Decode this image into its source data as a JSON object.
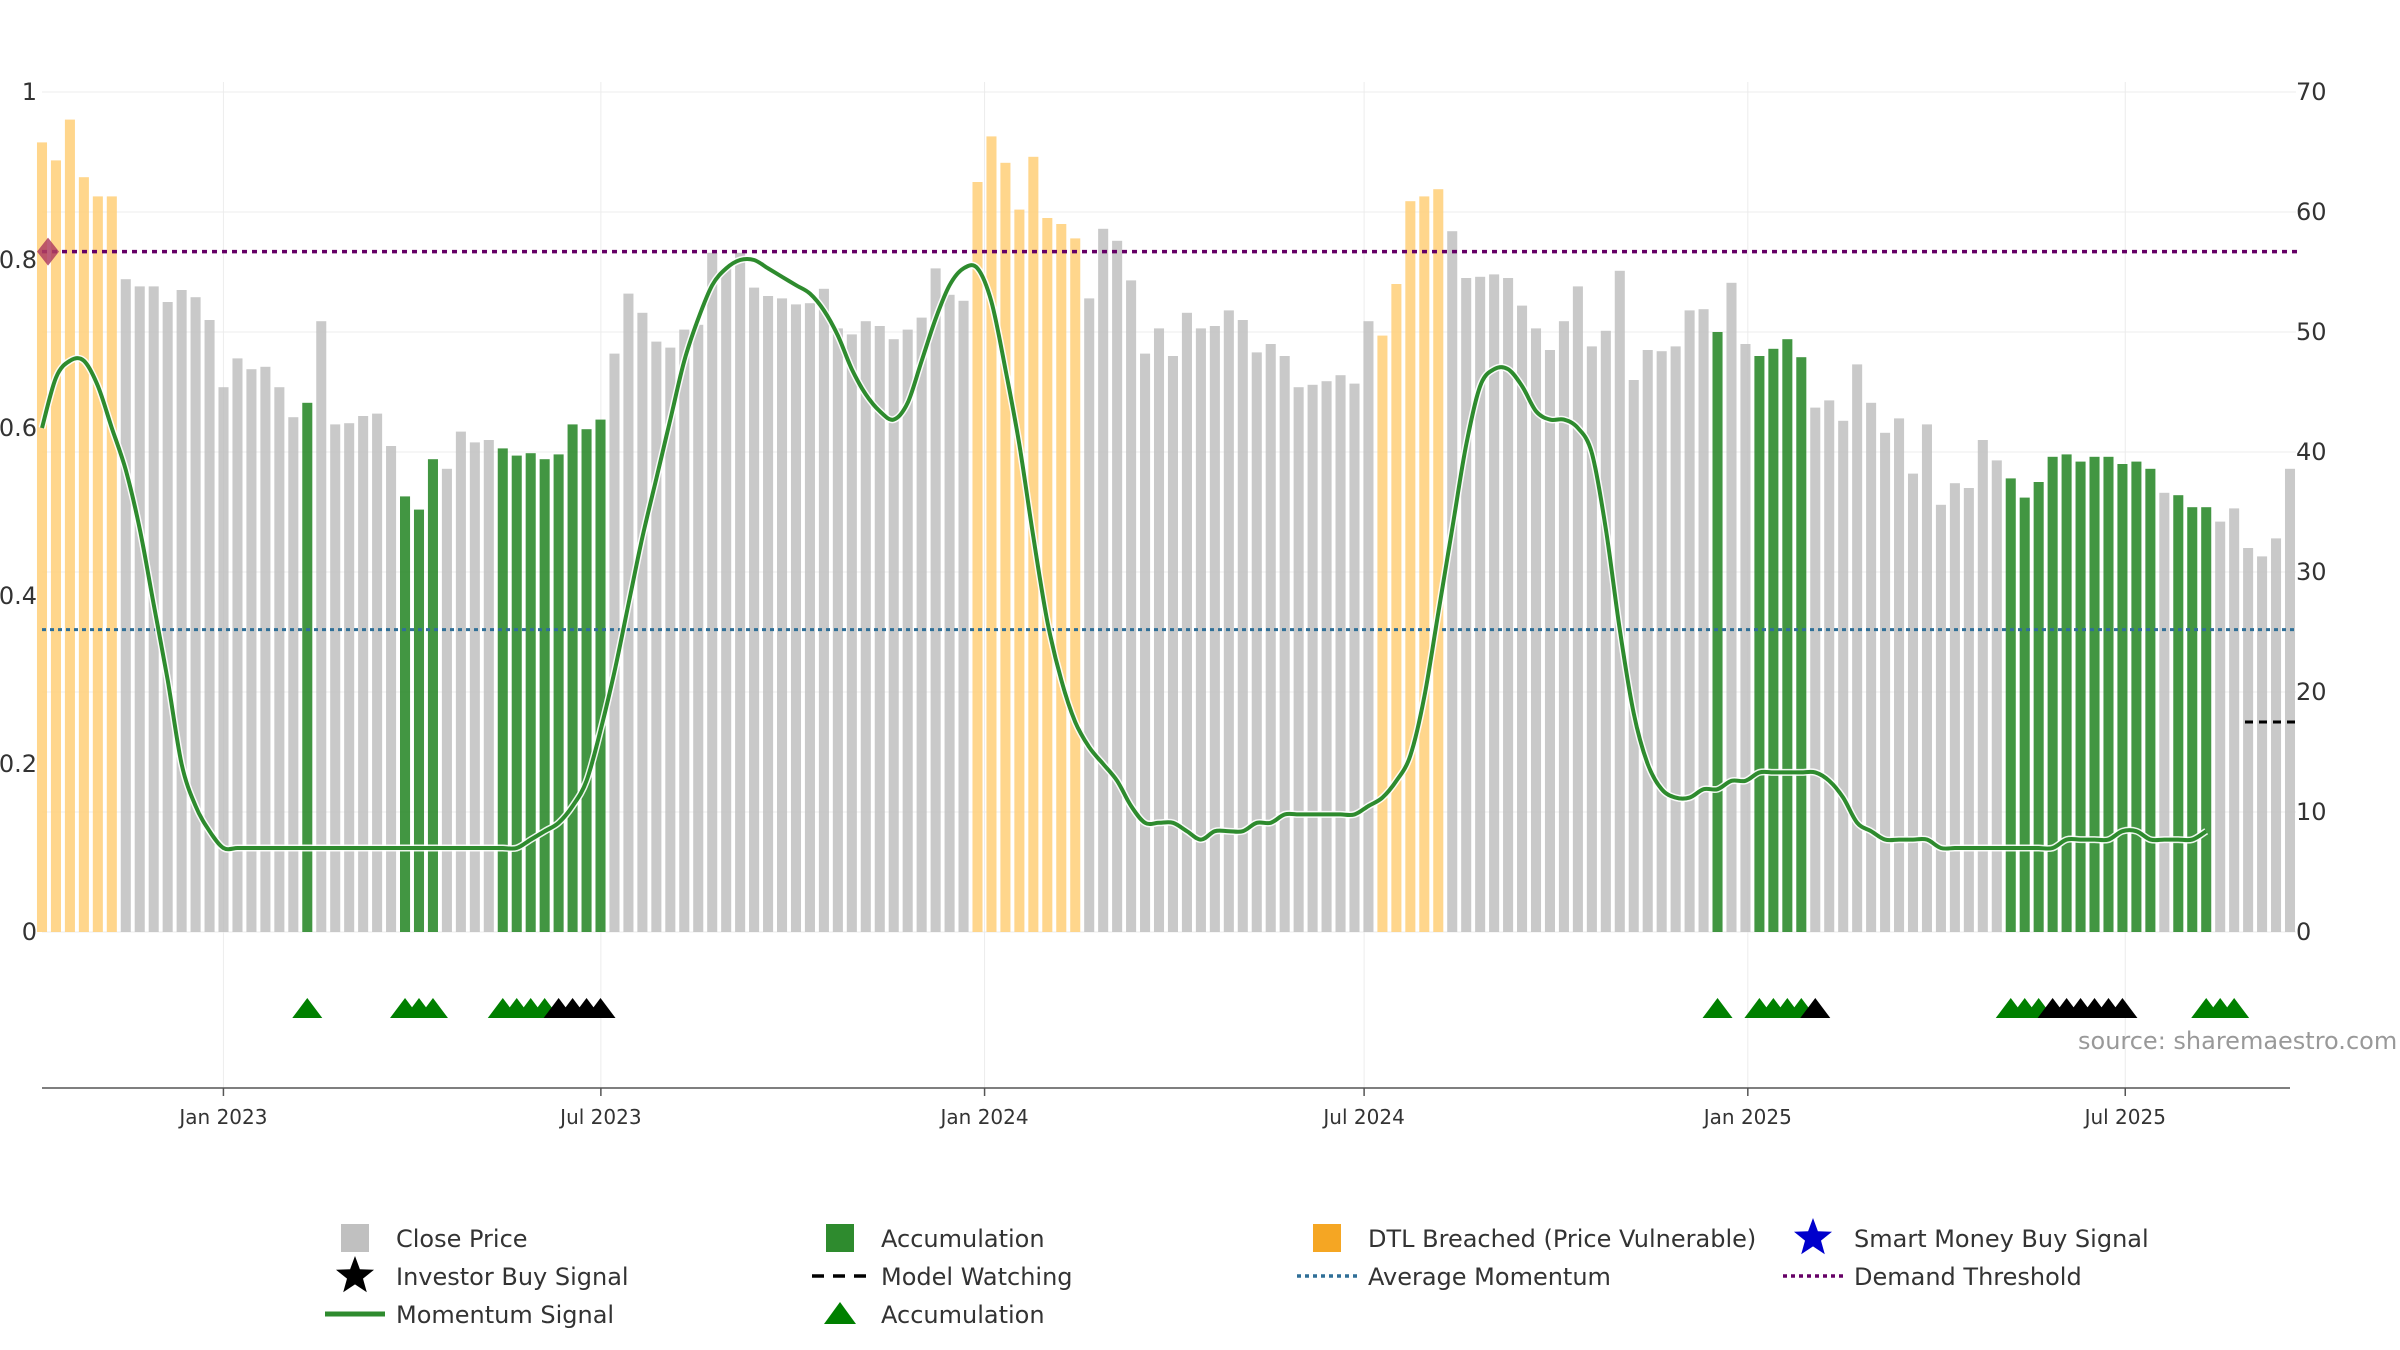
{
  "chart_data": {
    "type": "bar",
    "title": "",
    "xlabel": "",
    "ylabel": "",
    "left_axis": {
      "range": [
        0,
        1
      ],
      "ticks": [
        "0",
        "0.2",
        "0.4",
        "0.6",
        "0.8",
        "1"
      ]
    },
    "right_axis": {
      "range": [
        0,
        70
      ],
      "ticks": [
        "0",
        "10",
        "20",
        "30",
        "40",
        "50",
        "60",
        "70"
      ]
    },
    "x_start": "2022-10-06",
    "x_end": "2025-09-18",
    "x_ticks": [
      "Jan 2023",
      "Jul 2023",
      "Jan 2024",
      "Jul 2024",
      "Jan 2025",
      "Jul 2025"
    ],
    "colors": {
      "close": "#c0c0c0",
      "accumulation": "#2e8b2e",
      "dtl": "#ffd17f",
      "momentum": "#2e8b2e",
      "momentum_strong": "#008000",
      "momentum_dtl": "#9a9a10",
      "average": "#2f6f97",
      "threshold": "#660066",
      "triangle_acc": "#008000",
      "triangle_inv": "#000000",
      "smart_money": "#0000cc",
      "diamond": "#b04060"
    },
    "series": [
      {
        "name": "Close Price",
        "week_step": 1,
        "values": [
          65.8,
          64.3,
          67.7,
          62.9,
          61.3,
          61.3,
          54.4,
          53.8,
          53.8,
          52.5,
          53.5,
          52.9,
          51.0,
          45.4,
          47.8,
          46.9,
          47.1,
          45.4,
          42.9,
          44.1,
          50.9,
          42.3,
          42.4,
          43.0,
          43.2,
          40.5,
          36.3,
          35.2,
          39.4,
          38.6,
          41.7,
          40.8,
          41.0,
          40.3,
          39.7,
          39.9,
          39.4,
          39.8,
          42.3,
          41.9,
          42.7,
          48.2,
          53.2,
          51.6,
          49.2,
          48.7,
          50.2,
          50.6,
          56.6,
          55.3,
          56.6,
          53.7,
          53.0,
          52.8,
          52.3,
          52.4,
          53.6,
          50.3,
          49.8,
          50.9,
          50.5,
          49.4,
          50.2,
          51.2,
          55.3,
          53.1,
          52.6,
          62.5,
          66.3,
          64.1,
          60.2,
          64.6,
          59.5,
          59.0,
          57.8,
          52.8,
          58.6,
          57.6,
          54.3,
          48.2,
          50.3,
          48.0,
          51.6,
          50.3,
          50.5,
          51.8,
          51.0,
          48.3,
          49.0,
          48.0,
          45.4,
          45.6,
          45.9,
          46.4,
          45.7,
          50.9,
          49.7,
          54.0,
          60.9,
          61.3,
          61.9,
          58.4,
          54.5,
          54.6,
          54.8,
          54.5,
          52.2,
          50.3,
          48.5,
          50.9,
          53.8,
          48.8,
          50.1,
          55.1,
          46.0,
          48.5,
          48.4,
          48.8,
          51.8,
          51.9,
          50.0,
          54.1,
          49.0,
          48.0,
          48.6,
          49.4,
          47.9,
          43.7,
          44.3,
          42.6,
          47.3,
          44.1,
          41.6,
          42.8,
          38.2,
          42.3,
          35.6,
          37.4,
          37.0,
          41.0,
          39.3,
          37.8,
          36.2,
          37.5,
          39.6,
          39.8,
          39.2,
          39.6,
          39.6,
          39.0,
          39.2,
          38.6,
          36.6,
          36.4,
          35.4,
          35.4,
          34.2,
          35.3,
          32.0,
          31.3,
          32.8,
          38.6
        ]
      },
      {
        "name": "Accumulation",
        "ranges": [
          [
            19,
            19
          ],
          [
            26,
            28
          ],
          [
            33,
            40
          ],
          [
            120,
            120
          ],
          [
            123,
            126
          ],
          [
            141,
            151
          ],
          [
            153,
            155
          ]
        ]
      },
      {
        "name": "DTL Breached (Price Vulnerable)",
        "ranges": [
          [
            0,
            5
          ],
          [
            67,
            74
          ],
          [
            96,
            100
          ]
        ]
      },
      {
        "name": "Momentum Signal",
        "week_step": 1,
        "values": [
          0.6,
          0.66,
          0.68,
          0.68,
          0.65,
          0.6,
          0.55,
          0.48,
          0.39,
          0.3,
          0.2,
          0.15,
          0.12,
          0.1,
          0.1,
          0.1,
          0.1,
          0.1,
          0.1,
          0.1,
          0.1,
          0.1,
          0.1,
          0.1,
          0.1,
          0.1,
          0.1,
          0.1,
          0.1,
          0.1,
          0.1,
          0.1,
          0.1,
          0.1,
          0.1,
          0.11,
          0.12,
          0.13,
          0.15,
          0.18,
          0.24,
          0.31,
          0.39,
          0.47,
          0.54,
          0.61,
          0.68,
          0.73,
          0.77,
          0.79,
          0.8,
          0.8,
          0.79,
          0.78,
          0.77,
          0.76,
          0.74,
          0.71,
          0.67,
          0.64,
          0.62,
          0.61,
          0.63,
          0.68,
          0.73,
          0.77,
          0.79,
          0.79,
          0.75,
          0.67,
          0.58,
          0.47,
          0.37,
          0.3,
          0.25,
          0.22,
          0.2,
          0.18,
          0.15,
          0.13,
          0.13,
          0.13,
          0.12,
          0.11,
          0.12,
          0.12,
          0.12,
          0.13,
          0.13,
          0.14,
          0.14,
          0.14,
          0.14,
          0.14,
          0.14,
          0.15,
          0.16,
          0.18,
          0.21,
          0.28,
          0.38,
          0.48,
          0.58,
          0.65,
          0.67,
          0.67,
          0.65,
          0.62,
          0.61,
          0.61,
          0.6,
          0.57,
          0.48,
          0.36,
          0.26,
          0.2,
          0.17,
          0.16,
          0.16,
          0.17,
          0.17,
          0.18,
          0.18,
          0.19,
          0.19,
          0.19,
          0.19,
          0.19,
          0.18,
          0.16,
          0.13,
          0.12,
          0.11,
          0.11,
          0.11,
          0.11,
          0.1,
          0.1,
          0.1,
          0.1,
          0.1,
          0.1,
          0.1,
          0.1,
          0.1,
          0.11,
          0.11,
          0.11,
          0.11,
          0.12,
          0.12,
          0.11,
          0.11,
          0.11,
          0.11,
          0.12
        ]
      },
      {
        "name": "Average Momentum",
        "value": 0.36
      },
      {
        "name": "Demand Threshold",
        "value": 0.81
      },
      {
        "name": "Model Watching",
        "value": 0.25
      },
      {
        "name": "Accumulation markers",
        "indices": [
          19,
          26,
          27,
          28,
          33,
          34,
          35,
          36,
          120,
          123,
          124,
          125,
          126,
          141,
          142,
          143,
          155,
          156,
          157
        ]
      },
      {
        "name": "Investor Buy Signal markers",
        "indices": [
          37,
          38,
          39,
          40,
          127,
          144,
          145,
          146,
          147,
          148,
          149
        ]
      },
      {
        "name": "Breach diamond",
        "index": 0,
        "value": 0.81
      }
    ],
    "legend": [
      {
        "key": "close",
        "label": "Close Price",
        "symbol": "square"
      },
      {
        "key": "accumulation",
        "label": "Accumulation",
        "symbol": "square"
      },
      {
        "key": "dtl",
        "label": "DTL Breached (Price Vulnerable)",
        "symbol": "square"
      },
      {
        "key": "smart_money",
        "label": "Smart Money Buy Signal",
        "symbol": "star"
      },
      {
        "key": "investor",
        "label": "Investor Buy Signal",
        "symbol": "star"
      },
      {
        "key": "watching",
        "label": "Model Watching",
        "symbol": "dash"
      },
      {
        "key": "average",
        "label": "Average Momentum",
        "symbol": "dot"
      },
      {
        "key": "threshold",
        "label": "Demand Threshold",
        "symbol": "dot"
      },
      {
        "key": "momentum",
        "label": "Momentum Signal",
        "symbol": "line"
      },
      {
        "key": "acc_triangle",
        "label": "Accumulation",
        "symbol": "triangle"
      }
    ],
    "legend_position": "bottom-center",
    "watermark": "source: sharemaestro.com"
  }
}
